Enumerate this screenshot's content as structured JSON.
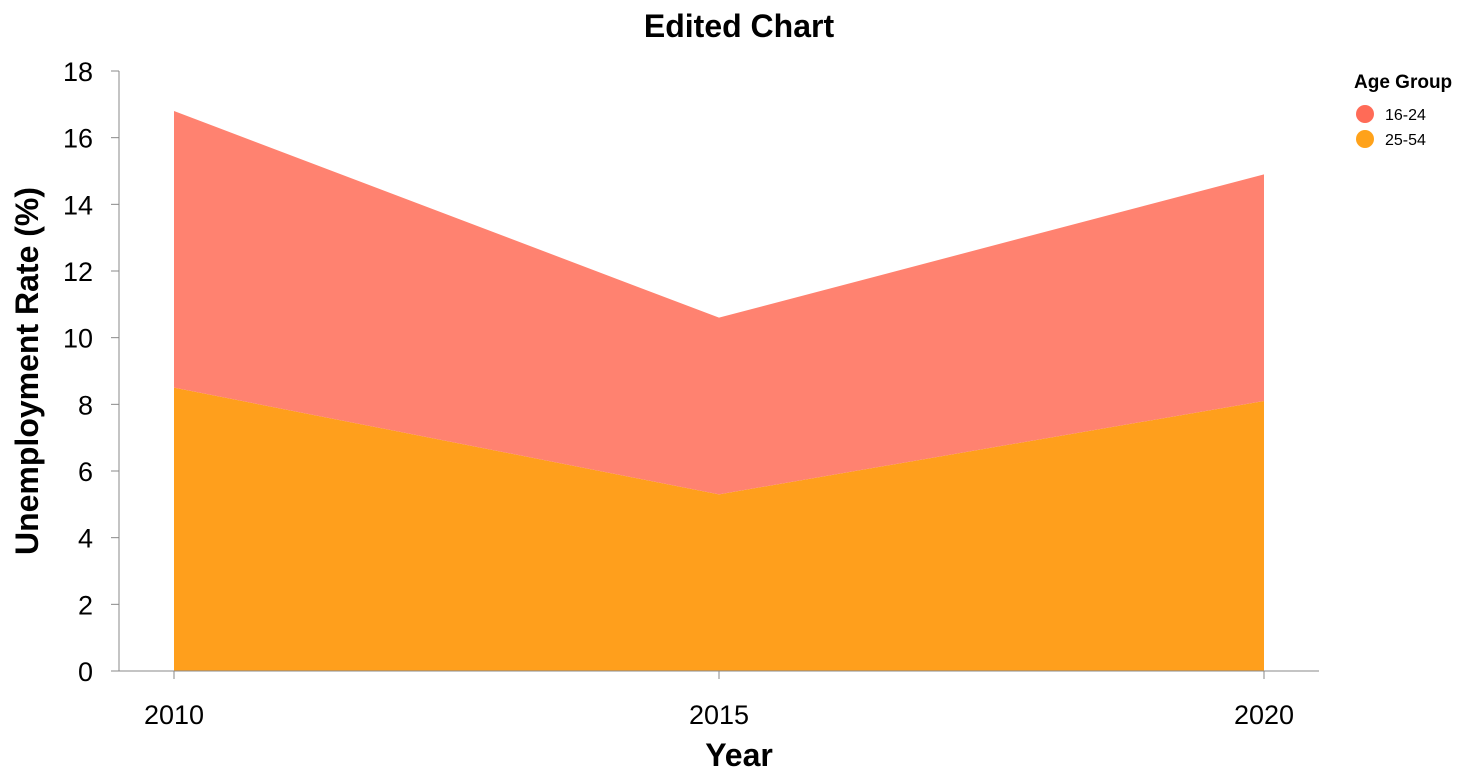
{
  "chart_data": {
    "type": "area",
    "stacked": true,
    "title": "Edited Chart",
    "xlabel": "Year",
    "ylabel": "Unemployment Rate (%)",
    "x": [
      2010,
      2015,
      2020
    ],
    "x_ticks": [
      "2010",
      "2015",
      "2020"
    ],
    "ylim": [
      0,
      18
    ],
    "y_ticks": [
      "0",
      "2",
      "4",
      "6",
      "8",
      "10",
      "12",
      "14",
      "16",
      "18"
    ],
    "grid": false,
    "legend": {
      "title": "Age Group",
      "placement": "top-right"
    },
    "series": [
      {
        "name": "16-24",
        "values": [
          8.3,
          5.3,
          6.8
        ],
        "color": "#ff8270",
        "legend_color": "#ff6b57"
      },
      {
        "name": "25-54",
        "values": [
          8.5,
          5.3,
          8.1
        ],
        "color": "#ff9f1c",
        "legend_color": "#ffa21a"
      }
    ]
  }
}
